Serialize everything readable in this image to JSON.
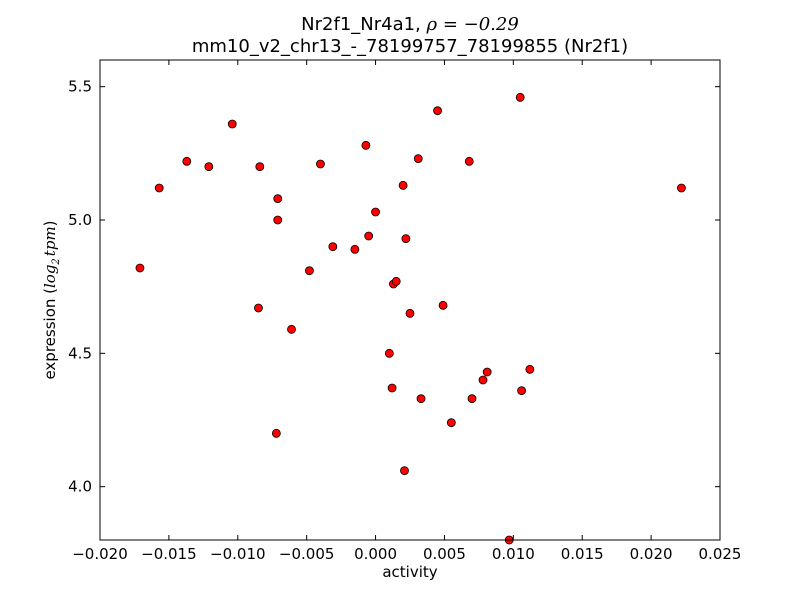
{
  "chart_data": {
    "type": "scatter",
    "title": {
      "line1_prefix": "Nr2f1_Nr4a1, ",
      "line1_math": "ρ = −0.29",
      "line2": "mm10_v2_chr13_-_78199757_78199855 (Nr2f1)"
    },
    "xlabel": "activity",
    "ylabel": {
      "text": "expression (",
      "math_base": "log",
      "math_sub": "2",
      "math_tail": "tpm",
      "close": ")"
    },
    "xlim": [
      -0.02,
      0.025
    ],
    "ylim": [
      3.8,
      5.6
    ],
    "xticks": [
      {
        "value": -0.02,
        "label": "−0.020"
      },
      {
        "value": -0.015,
        "label": "−0.015"
      },
      {
        "value": -0.01,
        "label": "−0.010"
      },
      {
        "value": -0.005,
        "label": "−0.005"
      },
      {
        "value": 0.0,
        "label": "0.000"
      },
      {
        "value": 0.005,
        "label": "0.005"
      },
      {
        "value": 0.01,
        "label": "0.010"
      },
      {
        "value": 0.015,
        "label": "0.015"
      },
      {
        "value": 0.02,
        "label": "0.020"
      },
      {
        "value": 0.025,
        "label": "0.025"
      }
    ],
    "yticks": [
      {
        "value": 4.0,
        "label": "4.0"
      },
      {
        "value": 4.5,
        "label": "4.5"
      },
      {
        "value": 5.0,
        "label": "5.0"
      },
      {
        "value": 5.5,
        "label": "5.5"
      }
    ],
    "marker_color": "#ff0000",
    "marker_edge": "#000000",
    "points": [
      {
        "x": -0.0171,
        "y": 4.82
      },
      {
        "x": -0.0157,
        "y": 5.12
      },
      {
        "x": -0.0137,
        "y": 5.22
      },
      {
        "x": -0.0121,
        "y": 5.2
      },
      {
        "x": -0.0104,
        "y": 5.36
      },
      {
        "x": -0.0085,
        "y": 4.67
      },
      {
        "x": -0.0084,
        "y": 5.2
      },
      {
        "x": -0.0071,
        "y": 5.08
      },
      {
        "x": -0.0071,
        "y": 5.0
      },
      {
        "x": -0.0072,
        "y": 4.2
      },
      {
        "x": -0.0061,
        "y": 4.59
      },
      {
        "x": -0.0048,
        "y": 4.81
      },
      {
        "x": -0.004,
        "y": 5.21
      },
      {
        "x": -0.0031,
        "y": 4.9
      },
      {
        "x": -0.0015,
        "y": 4.89
      },
      {
        "x": -0.0007,
        "y": 5.28
      },
      {
        "x": -0.0005,
        "y": 4.94
      },
      {
        "x": 0.0,
        "y": 5.03
      },
      {
        "x": 0.001,
        "y": 4.5
      },
      {
        "x": 0.0012,
        "y": 4.37
      },
      {
        "x": 0.0013,
        "y": 4.76
      },
      {
        "x": 0.0015,
        "y": 4.77
      },
      {
        "x": 0.002,
        "y": 5.13
      },
      {
        "x": 0.0021,
        "y": 4.06
      },
      {
        "x": 0.0022,
        "y": 4.93
      },
      {
        "x": 0.0025,
        "y": 4.65
      },
      {
        "x": 0.0031,
        "y": 5.23
      },
      {
        "x": 0.0033,
        "y": 4.33
      },
      {
        "x": 0.0045,
        "y": 5.41
      },
      {
        "x": 0.0049,
        "y": 4.68
      },
      {
        "x": 0.0055,
        "y": 4.24
      },
      {
        "x": 0.0068,
        "y": 5.22
      },
      {
        "x": 0.007,
        "y": 4.33
      },
      {
        "x": 0.0078,
        "y": 4.4
      },
      {
        "x": 0.0081,
        "y": 4.43
      },
      {
        "x": 0.0097,
        "y": 3.8
      },
      {
        "x": 0.0105,
        "y": 5.46
      },
      {
        "x": 0.0106,
        "y": 4.36
      },
      {
        "x": 0.0112,
        "y": 4.44
      },
      {
        "x": 0.0222,
        "y": 5.12
      }
    ]
  }
}
